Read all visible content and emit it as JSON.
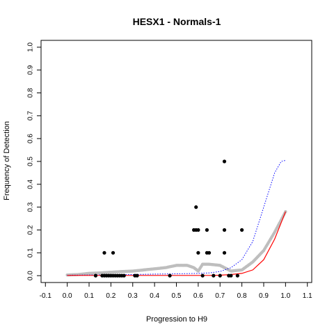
{
  "chart_data": {
    "type": "scatter",
    "title": "HESX1 - Normals-1",
    "xlabel": "Progression to H9",
    "ylabel": "Frequency of Detection",
    "xlim": [
      -0.12,
      1.12
    ],
    "ylim": [
      -0.03,
      1.03
    ],
    "xticks": [
      "-0.1",
      "0.0",
      "0.1",
      "0.2",
      "0.3",
      "0.4",
      "0.5",
      "0.6",
      "0.7",
      "0.8",
      "0.9",
      "1.0",
      "1.1"
    ],
    "yticks": [
      "0.0",
      "0.1",
      "0.2",
      "0.3",
      "0.4",
      "0.5",
      "0.6",
      "0.7",
      "0.8",
      "0.9",
      "1.0"
    ],
    "grid": false,
    "series": [
      {
        "style": "points",
        "color": "#000000",
        "x": [
          0.13,
          0.16,
          0.17,
          0.18,
          0.19,
          0.2,
          0.21,
          0.22,
          0.23,
          0.24,
          0.25,
          0.26,
          0.31,
          0.32,
          0.47,
          0.62,
          0.67,
          0.7,
          0.74,
          0.75,
          0.78,
          0.17,
          0.21,
          0.6,
          0.64,
          0.65,
          0.72,
          0.58,
          0.59,
          0.6,
          0.64,
          0.72,
          0.8,
          0.59,
          0.72
        ],
        "y": [
          0,
          0,
          0,
          0,
          0,
          0,
          0,
          0,
          0,
          0,
          0,
          0,
          0,
          0,
          0,
          0,
          0,
          0,
          0,
          0,
          0,
          0.1,
          0.1,
          0.1,
          0.1,
          0.1,
          0.1,
          0.2,
          0.2,
          0.2,
          0.2,
          0.2,
          0.2,
          0.3,
          0.5
        ]
      },
      {
        "style": "smooth-band",
        "color": "#bebebe",
        "x": [
          0.0,
          0.05,
          0.1,
          0.15,
          0.2,
          0.25,
          0.3,
          0.35,
          0.4,
          0.45,
          0.5,
          0.55,
          0.58,
          0.6,
          0.62,
          0.65,
          0.7,
          0.72,
          0.75,
          0.8,
          0.85,
          0.9,
          0.95,
          1.0
        ],
        "y": [
          0.003,
          0.005,
          0.01,
          0.012,
          0.015,
          0.018,
          0.02,
          0.025,
          0.03,
          0.035,
          0.045,
          0.045,
          0.035,
          0.02,
          0.05,
          0.05,
          0.045,
          0.035,
          0.02,
          0.025,
          0.06,
          0.11,
          0.19,
          0.28
        ]
      },
      {
        "style": "dotted-line",
        "color": "#0000ff",
        "x": [
          0.0,
          0.1,
          0.2,
          0.3,
          0.4,
          0.5,
          0.6,
          0.65,
          0.7,
          0.75,
          0.8,
          0.85,
          0.9,
          0.95,
          0.98,
          1.0
        ],
        "y": [
          0.002,
          0.003,
          0.004,
          0.005,
          0.007,
          0.008,
          0.01,
          0.012,
          0.018,
          0.035,
          0.07,
          0.15,
          0.3,
          0.45,
          0.5,
          0.505
        ]
      },
      {
        "style": "solid-line",
        "color": "#ff0000",
        "x": [
          0.0,
          0.1,
          0.2,
          0.3,
          0.4,
          0.5,
          0.6,
          0.65,
          0.7,
          0.75,
          0.8,
          0.85,
          0.9,
          0.95,
          1.0
        ],
        "y": [
          0.001,
          0.001,
          0.001,
          0.001,
          0.001,
          0.001,
          0.001,
          0.001,
          0.002,
          0.005,
          0.01,
          0.025,
          0.07,
          0.16,
          0.28
        ]
      }
    ]
  }
}
